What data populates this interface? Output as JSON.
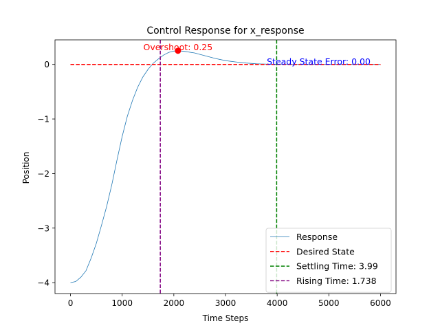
{
  "chart_data": {
    "type": "line",
    "title": "Control Response for x_response",
    "xlabel": "Time Steps",
    "ylabel": "Position",
    "xlim": [
      -300,
      6300
    ],
    "ylim": [
      -4.2,
      0.45
    ],
    "x_ticks": [
      0,
      1000,
      2000,
      3000,
      4000,
      5000,
      6000
    ],
    "y_ticks": [
      -4,
      -3,
      -2,
      -1,
      0
    ],
    "grid": false,
    "legend_position": "lower-right",
    "series": [
      {
        "name": "Response",
        "color": "#1f77b4",
        "style": "solid",
        "x": [
          0,
          100,
          200,
          300,
          400,
          500,
          600,
          700,
          800,
          900,
          1000,
          1100,
          1200,
          1300,
          1400,
          1500,
          1600,
          1700,
          1800,
          1900,
          2000,
          2100,
          2200,
          2400,
          2600,
          2800,
          3000,
          3200,
          3400,
          3600,
          3800,
          4000,
          4500,
          5000,
          5500,
          6000
        ],
        "y": [
          -4.0,
          -3.98,
          -3.9,
          -3.78,
          -3.55,
          -3.28,
          -2.95,
          -2.6,
          -2.2,
          -1.75,
          -1.32,
          -0.95,
          -0.66,
          -0.42,
          -0.23,
          -0.09,
          0.02,
          0.1,
          0.17,
          0.22,
          0.245,
          0.25,
          0.24,
          0.21,
          0.16,
          0.11,
          0.07,
          0.045,
          0.025,
          0.012,
          0.005,
          0.002,
          0.0,
          0.0,
          0.0,
          0.0
        ]
      },
      {
        "name": "Desired State",
        "color": "#ff0000",
        "style": "dashed",
        "x": [
          0,
          6000
        ],
        "y": [
          0,
          0
        ]
      }
    ],
    "vertical_lines": [
      {
        "name": "Settling Time: 3.99",
        "x": 3990,
        "color": "#008000"
      },
      {
        "name": "Rising Time: 1.738",
        "x": 1738,
        "color": "#800080"
      }
    ],
    "annotations": [
      {
        "text": "Overshoot: 0.25",
        "x": 2080,
        "y": 0.25,
        "color": "#ff0000",
        "marker": true
      },
      {
        "text": "Steady State Error: 0.00",
        "x": 3800,
        "y": 0.0,
        "color": "#0000ff",
        "marker": false
      }
    ],
    "legend": [
      {
        "label": "Response",
        "color": "#1f77b4",
        "style": "solid"
      },
      {
        "label": "Desired State",
        "color": "#ff0000",
        "style": "dashed"
      },
      {
        "label": "Settling Time: 3.99",
        "color": "#008000",
        "style": "dashed"
      },
      {
        "label": "Rising Time: 1.738",
        "color": "#800080",
        "style": "dashed"
      }
    ]
  }
}
